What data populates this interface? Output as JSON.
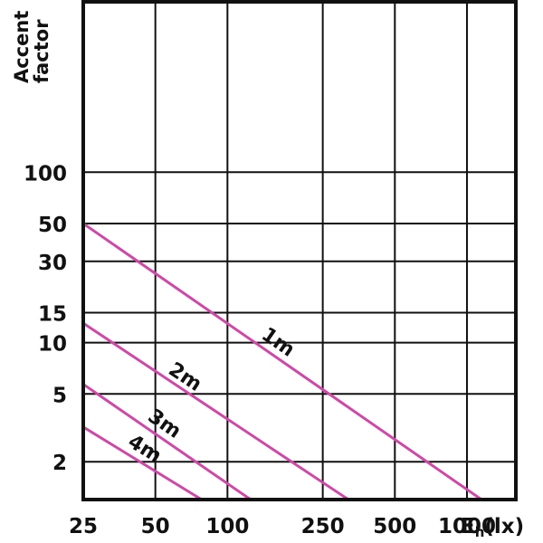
{
  "chart_data": {
    "type": "line",
    "ylabel_lines": [
      "Accent",
      "factor"
    ],
    "xlabel_main": "E",
    "xlabel_sub": "h",
    "xlabel_unit": "(lx)",
    "x_scale": "log",
    "y_scale": "log",
    "xlim": [
      25,
      1600
    ],
    "ylim": [
      1.2,
      1000
    ],
    "grid": true,
    "x_ticks": [
      25,
      50,
      100,
      250,
      500,
      1000
    ],
    "y_ticks": [
      2,
      5,
      10,
      15,
      30,
      50,
      100
    ],
    "x_grid": [
      25,
      50,
      100,
      250,
      500,
      1000
    ],
    "y_grid": [
      2,
      5,
      10,
      15,
      30,
      50,
      100,
      1000
    ],
    "series": [
      {
        "name": "1m",
        "x": [
          25,
          1150
        ],
        "y": [
          50,
          1.2
        ],
        "color": "#cc4aa6"
      },
      {
        "name": "2m",
        "x": [
          25,
          320
        ],
        "y": [
          13,
          1.2
        ],
        "color": "#cc4aa6"
      },
      {
        "name": "3m",
        "x": [
          25,
          125
        ],
        "y": [
          5.7,
          1.2
        ],
        "color": "#cc4aa6"
      },
      {
        "name": "4m",
        "x": [
          25,
          78
        ],
        "y": [
          3.2,
          1.2
        ],
        "color": "#cc4aa6"
      }
    ],
    "annotations": [
      "1m",
      "2m",
      "3m",
      "4m"
    ]
  }
}
